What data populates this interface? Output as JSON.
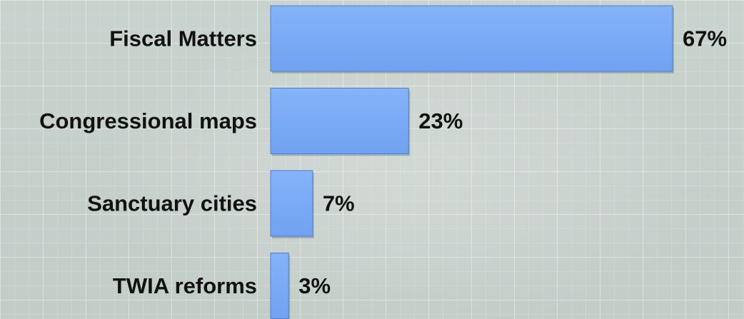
{
  "chart_data": {
    "type": "bar",
    "orientation": "horizontal",
    "categories": [
      "Fiscal Matters",
      "Congressional maps",
      "Sanctuary cities",
      "TWIA reforms"
    ],
    "values": [
      67,
      23,
      7,
      3
    ],
    "value_labels": [
      "67%",
      "23%",
      "7%",
      "3%"
    ],
    "xlim": [
      0,
      67
    ],
    "grid": false,
    "legend": "none",
    "bar_color": "#78aaf6"
  }
}
